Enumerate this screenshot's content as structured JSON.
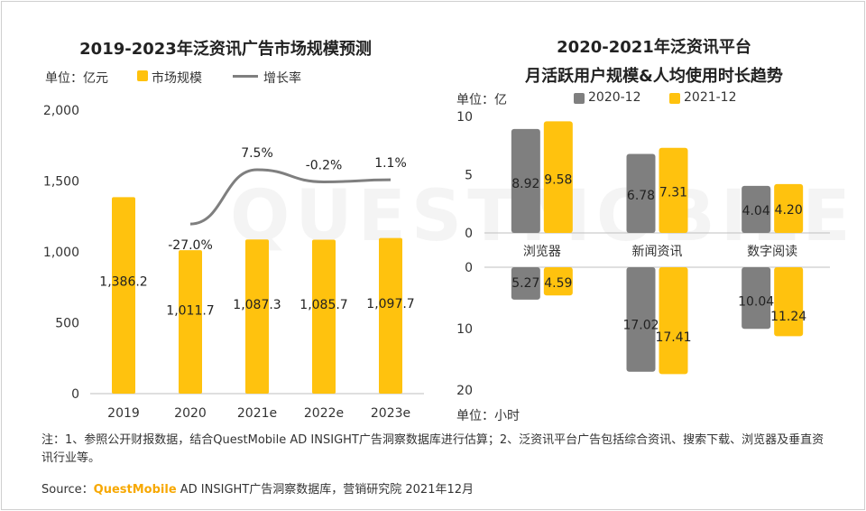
{
  "left": {
    "title": "2019-2023年泛资讯广告市场规模预测",
    "unit_label": "单位：亿元",
    "legend_bar": "市场规模",
    "legend_line": "增长率",
    "colors": {
      "bar": "#ffc20e",
      "line": "#7f7f7f"
    }
  },
  "right": {
    "title_line1": "2020-2021年泛资讯平台",
    "title_line2": "月活跃用户规模&人均使用时长趋势",
    "unit_top": "单位：亿",
    "unit_bottom": "单位：小时",
    "legend_2020": "2020-12",
    "legend_2021": "2021-12",
    "colors": {
      "s2020": "#7f7f7f",
      "s2021": "#ffc20e"
    }
  },
  "watermark": "QUESTMOBILE",
  "note_text": "注：1、参照公开财报数据，结合QuestMobile AD INSIGHT广告洞察数据库进行估算；2、泛资讯平台广告包括综合资讯、搜索下载、浏览器及垂直资讯行业等。",
  "source": {
    "prefix": "Source：",
    "brand": "QuestMobile",
    "rest": " AD INSIGHT广告洞察数据库，营销研究院 2021年12月"
  },
  "chart_data": [
    {
      "type": "bar",
      "title": "2019-2023年泛资讯广告市场规模预测",
      "categories": [
        "2019",
        "2020",
        "2021e",
        "2022e",
        "2023e"
      ],
      "ylim": [
        0,
        2000
      ],
      "yticks": [
        "0",
        "500",
        "1,000",
        "1,500",
        "2,000"
      ],
      "series": [
        {
          "name": "市场规模",
          "type": "bar",
          "values": [
            1386.2,
            1011.7,
            1087.3,
            1085.7,
            1097.7
          ],
          "labels": [
            "1,386.2",
            "1,011.7",
            "1,087.3",
            "1,085.7",
            "1,097.7"
          ]
        },
        {
          "name": "增长率",
          "type": "line",
          "values": [
            null,
            -27.0,
            7.5,
            -0.2,
            1.1
          ],
          "labels": [
            "",
            "-27.0%",
            "7.5%",
            "-0.2%",
            "1.1%"
          ]
        }
      ]
    },
    {
      "type": "bar",
      "title": "月活跃用户规模",
      "categories": [
        "浏览器",
        "新闻资讯",
        "数字阅读"
      ],
      "ylim": [
        0,
        10
      ],
      "yticks": [
        "0",
        "5",
        "10"
      ],
      "series": [
        {
          "name": "2020-12",
          "values": [
            8.92,
            6.78,
            4.04
          ]
        },
        {
          "name": "2021-12",
          "values": [
            9.58,
            7.31,
            4.2
          ]
        }
      ]
    },
    {
      "type": "bar",
      "title": "人均使用时长",
      "categories": [
        "浏览器",
        "新闻资讯",
        "数字阅读"
      ],
      "ylim": [
        0,
        20
      ],
      "yticks": [
        "0",
        "10",
        "20"
      ],
      "series": [
        {
          "name": "2020-12",
          "values": [
            5.27,
            17.02,
            10.04
          ]
        },
        {
          "name": "2021-12",
          "values": [
            4.59,
            17.41,
            11.24
          ]
        }
      ]
    }
  ]
}
